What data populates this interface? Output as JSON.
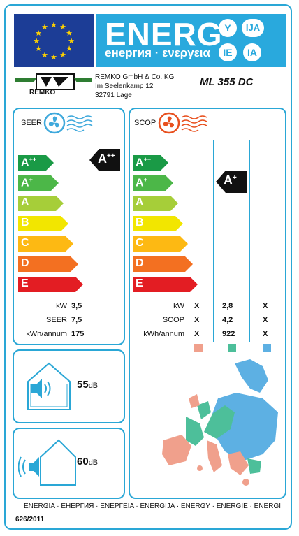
{
  "header": {
    "title": "ENERG",
    "subtitle": "енергия · ενεργεια",
    "lang_badges": [
      "Y",
      "IJA",
      "IE",
      "IA"
    ]
  },
  "supplier": {
    "logo_text": "REMKO",
    "lines": [
      "REMKO GmbH & Co. KG",
      "Im Seelenkamp 12",
      "32791 Lage"
    ],
    "model": "ML 355 DC"
  },
  "seer": {
    "label": "SEER",
    "classes": [
      "A++",
      "A+",
      "A",
      "B",
      "C",
      "D",
      "E"
    ],
    "rating": "A++",
    "rows": [
      {
        "label": "kW",
        "value": "3,5"
      },
      {
        "label": "SEER",
        "value": "7,5"
      },
      {
        "label": "kWh/annum",
        "value": "175"
      }
    ]
  },
  "scop": {
    "label": "SCOP",
    "classes": [
      "A++",
      "A+",
      "A",
      "B",
      "C",
      "D",
      "E"
    ],
    "rating": "A+",
    "rows": [
      {
        "label": "kW",
        "values": [
          "X",
          "2,8",
          "X"
        ]
      },
      {
        "label": "SCOP",
        "values": [
          "X",
          "4,2",
          "X"
        ]
      },
      {
        "label": "kWh/annum",
        "values": [
          "X",
          "922",
          "X"
        ]
      }
    ],
    "zone_colors": [
      "#f0a08c",
      "#4dbf9a",
      "#5db0e3"
    ]
  },
  "noise": {
    "indoor": {
      "value": "55",
      "unit": "dB"
    },
    "outdoor": {
      "value": "60",
      "unit": "dB"
    }
  },
  "footer": {
    "languages": "ENERGIA · ЕНЕРГИЯ · ΕΝΕΡΓΕΙΑ · ENERGIJA · ENERGY · ENERGIE · ENERGI",
    "regulation": "626/2011"
  },
  "colors": {
    "frame": "#2aa7d6",
    "class_colors": [
      "#1a9a46",
      "#4cb748",
      "#a6ce39",
      "#f2e600",
      "#fdb913",
      "#f37021",
      "#e31d23"
    ]
  },
  "icons": [
    "eu-flag-icon",
    "fan-cooling-icon",
    "fan-heating-icon",
    "speaker-icon",
    "house-icon",
    "europe-map-icon"
  ]
}
